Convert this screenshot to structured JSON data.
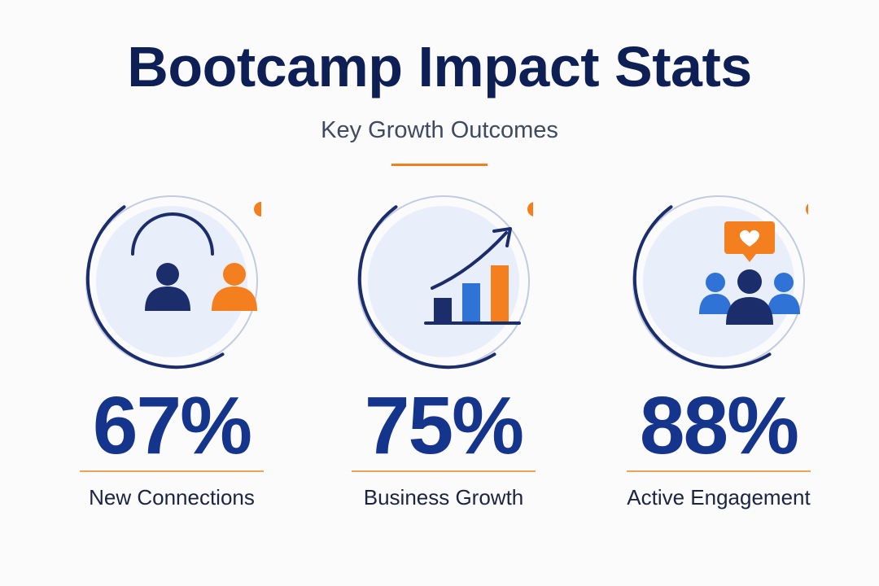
{
  "header": {
    "title": "Bootcamp Impact Stats",
    "subtitle": "Key Growth Outcomes"
  },
  "colors": {
    "navy": "#1b2d6b",
    "orange": "#f37f1e",
    "blue": "#2f73d6",
    "circle_bg": "#e8effa"
  },
  "stats": [
    {
      "value": "67%",
      "label": "New Connections",
      "icon": "people-connection-icon"
    },
    {
      "value": "75%",
      "label": "Business Growth",
      "icon": "growth-bar-chart-icon"
    },
    {
      "value": "88%",
      "label": "Active Engagement",
      "icon": "community-engagement-icon"
    }
  ]
}
